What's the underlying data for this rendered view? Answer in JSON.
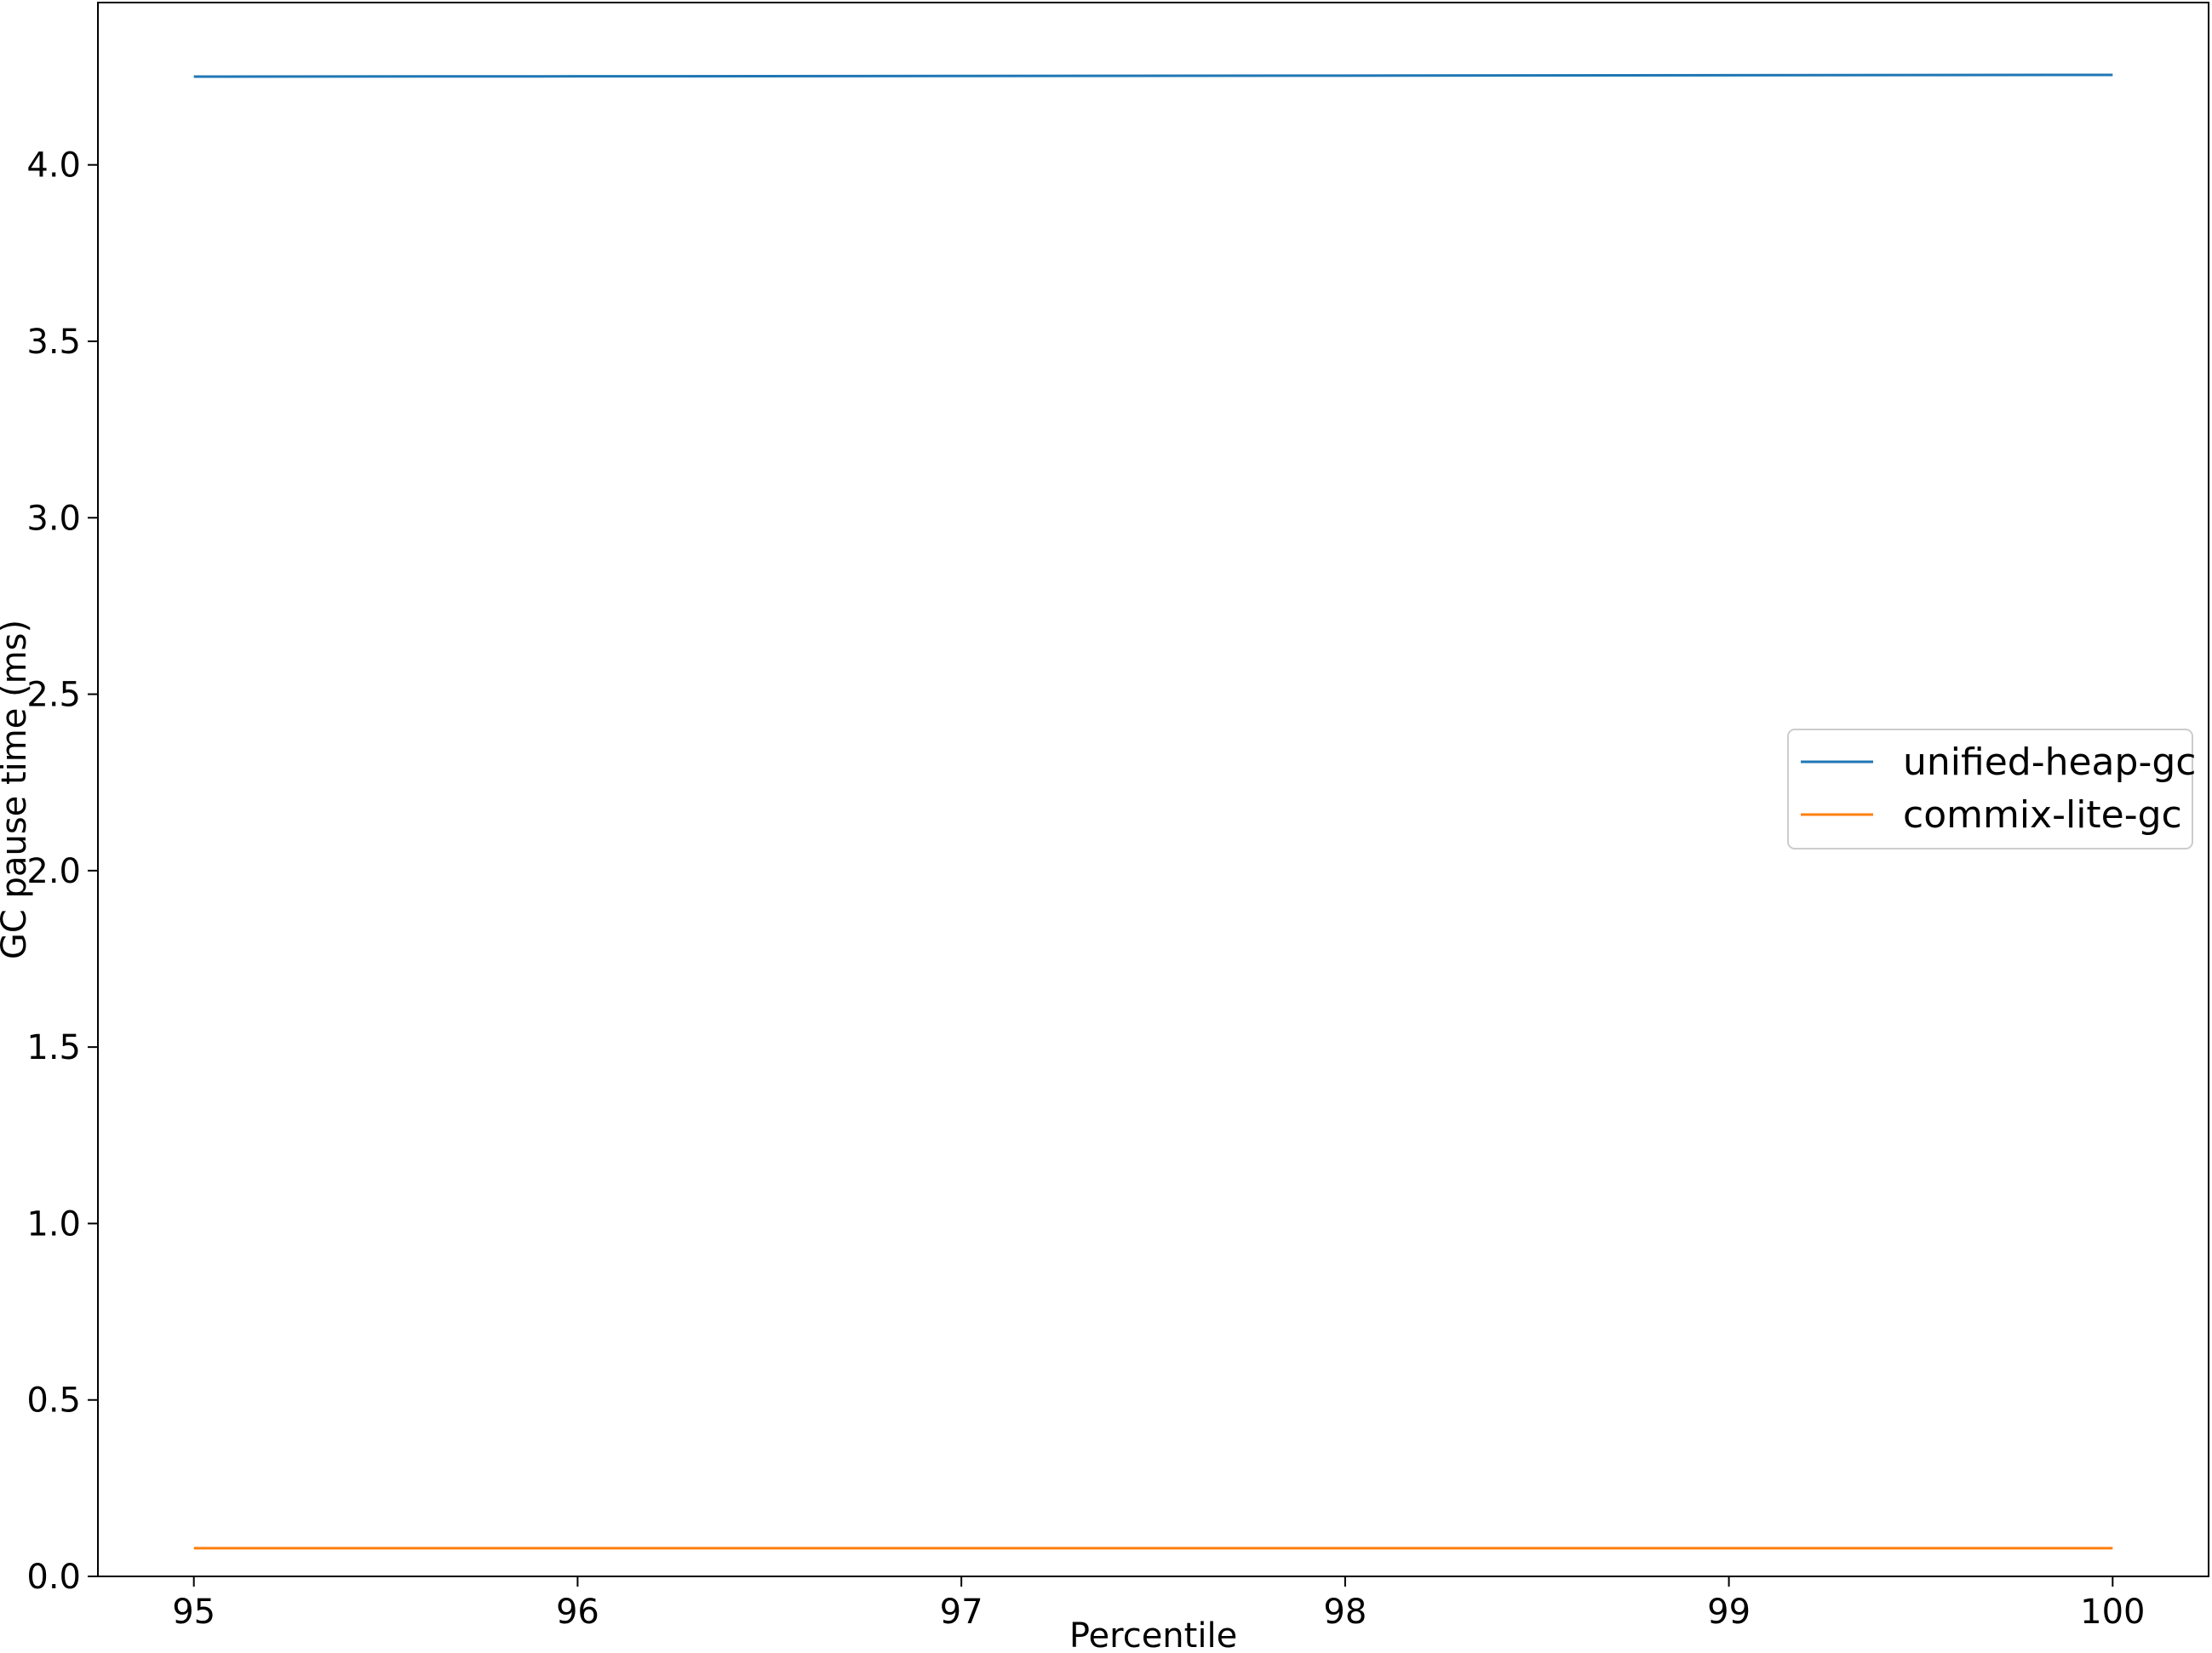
{
  "chart_data": {
    "type": "line",
    "title": "",
    "xlabel": "Percentile",
    "ylabel": "GC pause time (ms)",
    "xlim": [
      94.75,
      100.25
    ],
    "ylim": [
      0.0,
      4.46
    ],
    "x_ticks": [
      95,
      96,
      97,
      98,
      99,
      100
    ],
    "x_tick_labels": [
      "95",
      "96",
      "97",
      "98",
      "99",
      "100"
    ],
    "y_ticks": [
      0.0,
      0.5,
      1.0,
      1.5,
      2.0,
      2.5,
      3.0,
      3.5,
      4.0
    ],
    "y_tick_labels": [
      "0.0",
      "0.5",
      "1.0",
      "1.5",
      "2.0",
      "2.5",
      "3.0",
      "3.5",
      "4.0"
    ],
    "grid": false,
    "legend_position": "center-right",
    "series": [
      {
        "name": "unified-heap-gc",
        "color": "#1f77b4",
        "x": [
          95,
          96,
          97,
          98,
          99,
          100
        ],
        "y": [
          4.25,
          4.251,
          4.252,
          4.253,
          4.254,
          4.255
        ]
      },
      {
        "name": "commix-lite-gc",
        "color": "#ff7f0e",
        "x": [
          95,
          96,
          97,
          98,
          99,
          100
        ],
        "y": [
          0.08,
          0.08,
          0.08,
          0.08,
          0.08,
          0.08
        ]
      }
    ]
  }
}
